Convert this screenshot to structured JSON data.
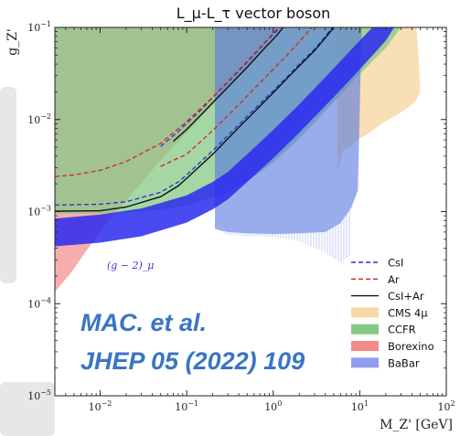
{
  "chart_data": {
    "type": "area",
    "title": "L_μ-L_τ vector boson",
    "xlabel": "M_Z' [GeV]",
    "ylabel": "g_Z'",
    "xscale": "log",
    "yscale": "log",
    "xlim": [
      0.003,
      100
    ],
    "ylim": [
      1e-05,
      0.1
    ],
    "x_ticks": [
      {
        "value": 0.01,
        "base": "10",
        "exp": "−2"
      },
      {
        "value": 0.1,
        "base": "10",
        "exp": "−1"
      },
      {
        "value": 1,
        "base": "10",
        "exp": "0"
      },
      {
        "value": 10,
        "base": "10",
        "exp": "1"
      },
      {
        "value": 100,
        "base": "10",
        "exp": "2"
      }
    ],
    "y_ticks": [
      {
        "value": 1e-05,
        "base": "10",
        "exp": "−5"
      },
      {
        "value": 0.0001,
        "base": "10",
        "exp": "−4"
      },
      {
        "value": 0.001,
        "base": "10",
        "exp": "−3"
      },
      {
        "value": 0.01,
        "base": "10",
        "exp": "−2"
      },
      {
        "value": 0.1,
        "base": "10",
        "exp": "−1"
      }
    ],
    "regions": [
      {
        "name": "CMS 4μ",
        "color": "#f7d9a8",
        "opacity": 0.85,
        "polygon": [
          [
            5.5,
            0.00258
          ],
          [
            6,
            0.0036
          ],
          [
            6.5,
            0.0047
          ],
          [
            8,
            0.0052
          ],
          [
            10,
            0.0062
          ],
          [
            13,
            0.0072
          ],
          [
            16,
            0.0083
          ],
          [
            20,
            0.0096
          ],
          [
            27,
            0.0112
          ],
          [
            35,
            0.0132
          ],
          [
            44,
            0.0156
          ],
          [
            50,
            0.02
          ],
          [
            48,
            0.045
          ],
          [
            45,
            0.1
          ],
          [
            5.5,
            0.1
          ]
        ]
      },
      {
        "name": "Borexino",
        "color": "#f48a8a",
        "opacity": 0.7,
        "polygon": [
          [
            0.003,
            0.000135
          ],
          [
            0.0045,
            0.00021
          ],
          [
            0.007,
            0.00038
          ],
          [
            0.011,
            0.00068
          ],
          [
            0.018,
            0.00118
          ],
          [
            0.03,
            0.00205
          ],
          [
            0.05,
            0.0036
          ],
          [
            0.08,
            0.0058
          ],
          [
            0.13,
            0.0094
          ],
          [
            0.22,
            0.016
          ],
          [
            0.3,
            0.0225
          ],
          [
            0.5,
            0.038
          ],
          [
            0.8,
            0.063
          ],
          [
            1.2,
            0.1
          ],
          [
            0.003,
            0.1
          ]
        ]
      },
      {
        "name": "CCFR",
        "color": "#86c986",
        "opacity": 0.75,
        "polygon": [
          [
            0.003,
            0.00095
          ],
          [
            0.01,
            0.00095
          ],
          [
            0.03,
            0.001
          ],
          [
            0.1,
            0.00115
          ],
          [
            0.3,
            0.0016
          ],
          [
            0.6,
            0.0024
          ],
          [
            1,
            0.0034
          ],
          [
            2,
            0.0062
          ],
          [
            3,
            0.0092
          ],
          [
            5,
            0.0155
          ],
          [
            8,
            0.025
          ],
          [
            10,
            0.0312
          ],
          [
            14,
            0.043
          ],
          [
            20,
            0.06
          ],
          [
            30,
            0.1
          ],
          [
            0.003,
            0.1
          ]
        ]
      },
      {
        "name": "BaBar",
        "color": "#5577e0",
        "opacity": 0.6,
        "polygon": [
          [
            0.212,
            0.1
          ],
          [
            0.212,
            0.00065
          ],
          [
            0.25,
            0.00062
          ],
          [
            0.3,
            0.0006
          ],
          [
            0.5,
            0.00058
          ],
          [
            1,
            0.00057
          ],
          [
            2,
            0.00058
          ],
          [
            4,
            0.0006
          ],
          [
            6,
            0.00075
          ],
          [
            8,
            0.0011
          ],
          [
            9.5,
            0.0017
          ],
          [
            10.5,
            0.1
          ]
        ]
      },
      {
        "name": "(g−2)_μ",
        "color": "#2a2af0",
        "opacity": 0.85,
        "polygon": [
          [
            0.003,
            0.00042
          ],
          [
            0.01,
            0.00046
          ],
          [
            0.03,
            0.00054
          ],
          [
            0.1,
            0.00076
          ],
          [
            0.2,
            0.00106
          ],
          [
            0.3,
            0.00136
          ],
          [
            0.5,
            0.0021
          ],
          [
            1,
            0.0038
          ],
          [
            2,
            0.0072
          ],
          [
            5,
            0.0175
          ],
          [
            10,
            0.035
          ],
          [
            20,
            0.072
          ],
          [
            25,
            0.1
          ],
          [
            14,
            0.1
          ],
          [
            10,
            0.072
          ],
          [
            5,
            0.036
          ],
          [
            2,
            0.0146
          ],
          [
            1,
            0.0077
          ],
          [
            0.5,
            0.0042
          ],
          [
            0.3,
            0.0027
          ],
          [
            0.2,
            0.0021
          ],
          [
            0.1,
            0.0015
          ],
          [
            0.03,
            0.00108
          ],
          [
            0.01,
            0.00093
          ],
          [
            0.003,
            0.00084
          ]
        ]
      }
    ],
    "lines": [
      {
        "name": "CsI",
        "color": "#2233cc",
        "dash": "5,3",
        "width": 1.3,
        "points": [
          [
            0.003,
            0.00118
          ],
          [
            0.01,
            0.0012
          ],
          [
            0.02,
            0.00128
          ],
          [
            0.05,
            0.00162
          ],
          [
            0.08,
            0.0021
          ],
          [
            0.1,
            0.0025
          ],
          [
            0.2,
            0.0046
          ],
          [
            0.4,
            0.0088
          ],
          [
            0.6,
            0.0128
          ],
          [
            1,
            0.0205
          ],
          [
            1.5,
            0.03
          ],
          [
            2,
            0.04
          ],
          [
            3,
            0.058
          ],
          [
            4,
            0.08
          ],
          [
            4.8,
            0.1
          ]
        ]
      },
      {
        "name": "CsI",
        "color": "#2233cc",
        "dash": "5,3",
        "width": 1.3,
        "points": [
          [
            0.05,
            0.0051
          ],
          [
            0.08,
            0.0074
          ],
          [
            0.1,
            0.0091
          ],
          [
            0.15,
            0.013
          ],
          [
            0.2,
            0.0175
          ],
          [
            0.3,
            0.0255
          ],
          [
            0.5,
            0.042
          ],
          [
            0.8,
            0.068
          ],
          [
            1.2,
            0.1
          ]
        ]
      },
      {
        "name": "Ar",
        "color": "#dd2222",
        "dash": "5,3",
        "width": 1.3,
        "points": [
          [
            0.003,
            0.0024
          ],
          [
            0.005,
            0.0025
          ],
          [
            0.01,
            0.0028
          ],
          [
            0.02,
            0.0035
          ],
          [
            0.05,
            0.0055
          ],
          [
            0.1,
            0.0095
          ],
          [
            0.2,
            0.0175
          ],
          [
            0.3,
            0.026
          ],
          [
            0.5,
            0.043
          ],
          [
            0.8,
            0.069
          ],
          [
            1.15,
            0.1
          ]
        ]
      },
      {
        "name": "Ar",
        "color": "#dd2222",
        "dash": "5,3",
        "width": 1.3,
        "points": [
          [
            0.05,
            0.0031
          ],
          [
            0.1,
            0.0042
          ],
          [
            0.2,
            0.0076
          ],
          [
            0.4,
            0.0145
          ],
          [
            0.6,
            0.0215
          ],
          [
            1,
            0.035
          ],
          [
            1.5,
            0.052
          ],
          [
            2,
            0.07
          ],
          [
            2.8,
            0.1
          ]
        ]
      },
      {
        "name": "CsI+Ar",
        "color": "#111111",
        "dash": "",
        "width": 1.4,
        "points": [
          [
            0.003,
            0.00101
          ],
          [
            0.01,
            0.00102
          ],
          [
            0.02,
            0.00112
          ],
          [
            0.05,
            0.00145
          ],
          [
            0.08,
            0.0019
          ],
          [
            0.1,
            0.0023
          ],
          [
            0.2,
            0.0042
          ],
          [
            0.4,
            0.0082
          ],
          [
            0.6,
            0.012
          ],
          [
            1,
            0.0195
          ],
          [
            1.5,
            0.029
          ],
          [
            2,
            0.038
          ],
          [
            3,
            0.056
          ],
          [
            4,
            0.077
          ],
          [
            5,
            0.1
          ]
        ]
      },
      {
        "name": "CsI+Ar",
        "color": "#111111",
        "dash": "",
        "width": 1.4,
        "points": [
          [
            0.07,
            0.0058
          ],
          [
            0.1,
            0.0078
          ],
          [
            0.15,
            0.0115
          ],
          [
            0.2,
            0.0152
          ],
          [
            0.3,
            0.0225
          ],
          [
            0.5,
            0.037
          ],
          [
            0.8,
            0.06
          ],
          [
            1.1,
            0.082
          ],
          [
            1.3,
            0.1
          ]
        ]
      }
    ],
    "legend": {
      "position": "bottom-right",
      "entries": [
        {
          "label": "CsI",
          "kind": "line",
          "color": "#2233cc",
          "dash": "5,3"
        },
        {
          "label": "Ar",
          "kind": "line",
          "color": "#dd2222",
          "dash": "5,3"
        },
        {
          "label": "CsI+Ar",
          "kind": "line",
          "color": "#111111",
          "dash": ""
        },
        {
          "label": "CMS 4μ",
          "kind": "patch",
          "color": "#f7d9a8"
        },
        {
          "label": "CCFR",
          "kind": "patch",
          "color": "#86c986"
        },
        {
          "label": "Borexino",
          "kind": "patch",
          "color": "#f48a8a"
        },
        {
          "label": "BaBar",
          "kind": "patch",
          "color": "#8f9cf0"
        }
      ]
    },
    "annotations": [
      {
        "text": "(g − 2)_μ",
        "x": 0.012,
        "y": 0.00024
      }
    ]
  },
  "citation": {
    "line1": "MAC. et al.",
    "line2": "JHEP 05 (2022) 109"
  }
}
